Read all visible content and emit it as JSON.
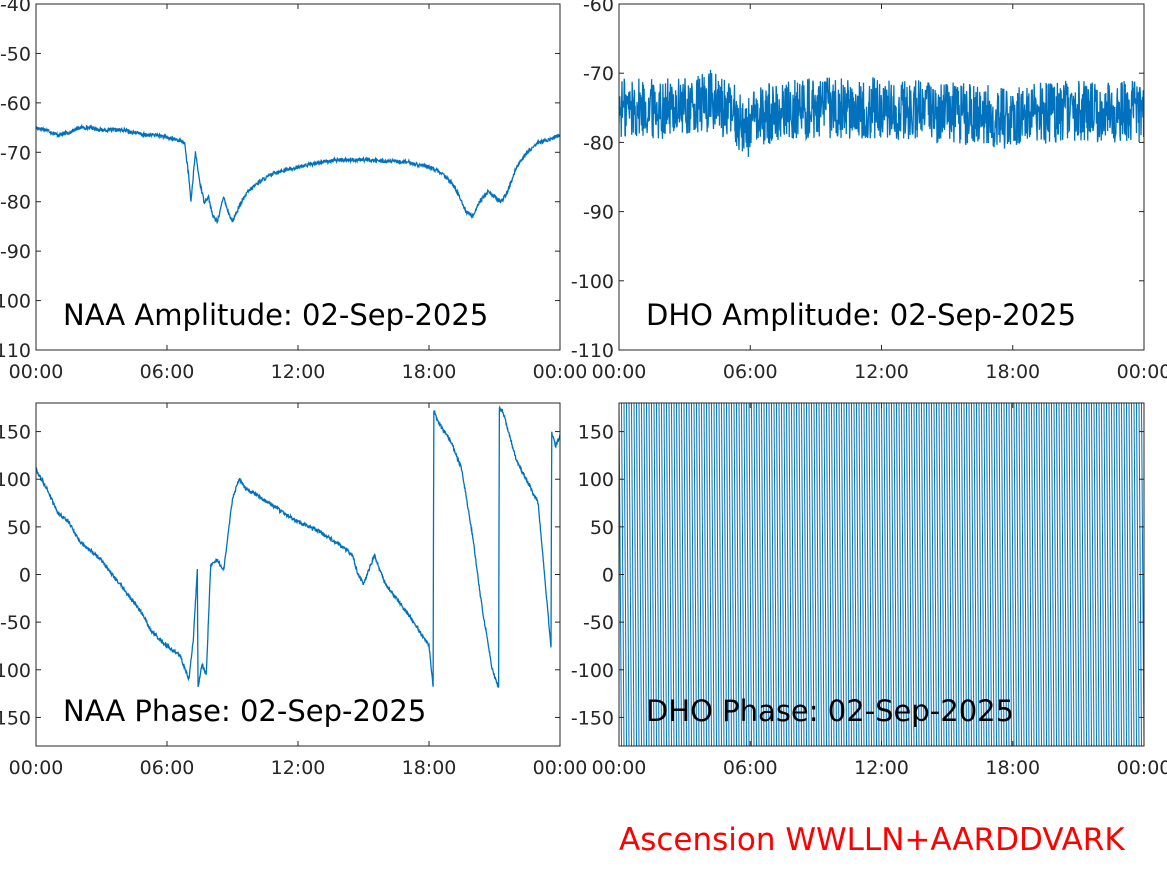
{
  "footer": "Ascension WWLLN+AARDDVARK",
  "line_color": "#0072BD",
  "chart_data": [
    {
      "id": "naa-amplitude",
      "type": "line",
      "title": "NAA Amplitude: 02-Sep-2025",
      "ylim": [
        -110,
        -40
      ],
      "yticks": [
        -40,
        -50,
        -60,
        -70,
        -80,
        -90,
        -100,
        -110
      ],
      "ytick_labels": [
        "-40",
        "-50",
        "-60",
        "-70",
        "-80",
        "-90",
        "-100",
        "-110"
      ],
      "xlim": [
        0,
        24
      ],
      "xtick_labels": [
        "00:00",
        "06:00",
        "12:00",
        "18:00",
        "00:00"
      ],
      "series": [
        {
          "x": [
            0,
            0.5,
            1,
            1.5,
            2,
            2.5,
            3,
            3.5,
            4,
            4.5,
            5,
            5.5,
            6,
            6.5,
            6.8,
            7.0,
            7.1,
            7.3,
            7.5,
            7.7,
            7.9,
            8.1,
            8.3,
            8.6,
            8.8,
            9.0,
            9.3,
            9.7,
            10.2,
            11,
            12,
            13,
            14,
            14.5,
            15,
            16,
            17,
            18,
            18.5,
            19,
            19.3,
            19.5,
            19.7,
            20,
            20.3,
            20.7,
            21,
            21.3,
            21.6,
            22,
            22.5,
            23,
            23.5,
            24
          ],
          "y": [
            -65,
            -65.5,
            -66.5,
            -66,
            -65,
            -65,
            -65.5,
            -65.5,
            -65.5,
            -66,
            -66.5,
            -66.5,
            -67,
            -67.5,
            -68,
            -75,
            -80,
            -70,
            -76,
            -80,
            -79,
            -83,
            -84,
            -79,
            -82,
            -84,
            -81,
            -78,
            -76,
            -74,
            -73,
            -72,
            -71.5,
            -71.5,
            -71.5,
            -71.8,
            -72,
            -73,
            -74,
            -76,
            -78,
            -80,
            -82,
            -83,
            -80,
            -78,
            -79,
            -80,
            -78,
            -73,
            -70,
            -68,
            -67.5,
            -66.5
          ],
          "noise": 0.4
        }
      ]
    },
    {
      "id": "dho-amplitude",
      "type": "line",
      "title": "DHO Amplitude: 02-Sep-2025",
      "ylim": [
        -110,
        -60
      ],
      "yticks": [
        -60,
        -70,
        -80,
        -90,
        -100,
        -110
      ],
      "ytick_labels": [
        "-60",
        "-70",
        "-80",
        "-90",
        "-100",
        "-110"
      ],
      "xlim": [
        0,
        24
      ],
      "xtick_labels": [
        "00:00",
        "06:00",
        "12:00",
        "18:00",
        "00:00"
      ],
      "series": [
        {
          "x": [
            0,
            2,
            3.5,
            4.2,
            4.8,
            5.3,
            5.8,
            6.5,
            8,
            10,
            12,
            14,
            16,
            18,
            19,
            20,
            22,
            24
          ],
          "y": [
            -75,
            -75,
            -75,
            -74,
            -75,
            -76,
            -78,
            -76,
            -75,
            -75,
            -75,
            -75.5,
            -76,
            -76.5,
            -76,
            -75.5,
            -75.5,
            -75.5
          ],
          "noise": 4.5
        }
      ]
    },
    {
      "id": "naa-phase",
      "type": "line",
      "title": "NAA Phase: 02-Sep-2025",
      "ylim": [
        -180,
        180
      ],
      "yticks": [
        150,
        100,
        50,
        0,
        -50,
        -100,
        -150
      ],
      "ytick_labels": [
        "150",
        "100",
        "50",
        "0",
        "-50",
        "-100",
        "-150"
      ],
      "xlim": [
        0,
        24
      ],
      "xtick_labels": [
        "00:00",
        "06:00",
        "12:00",
        "18:00",
        "00:00"
      ],
      "series": [
        {
          "x": [
            0,
            0.5,
            1,
            1.5,
            2,
            3,
            4,
            4.5,
            4.9,
            5.3,
            6,
            6.6,
            7,
            7.2,
            7.4,
            7.41,
            7.6,
            7.8,
            8.0,
            8.3,
            8.6,
            9.0,
            9.3,
            9.6,
            10,
            11,
            12,
            13,
            14,
            14.5,
            14.75,
            15,
            15.5,
            16,
            17,
            18,
            18.2,
            18.21,
            18.4,
            19,
            19.5,
            20,
            20.4,
            20.9,
            21.2,
            21.21,
            21.4,
            22,
            23,
            23.6,
            23.61,
            23.8,
            24
          ],
          "y": [
            110,
            90,
            65,
            55,
            35,
            15,
            -15,
            -30,
            -42,
            -60,
            -75,
            -85,
            -110,
            -70,
            10,
            -120,
            -95,
            -105,
            10,
            15,
            5,
            80,
            100,
            90,
            85,
            70,
            55,
            45,
            30,
            20,
            0,
            -10,
            20,
            -10,
            -40,
            -75,
            -120,
            175,
            160,
            140,
            110,
            40,
            -30,
            -100,
            -120,
            175,
            170,
            120,
            75,
            -80,
            150,
            135,
            145
          ],
          "noise": 2.0
        }
      ]
    },
    {
      "id": "dho-phase",
      "type": "line",
      "title": "DHO Phase: 02-Sep-2025",
      "ylim": [
        -180,
        180
      ],
      "yticks": [
        150,
        100,
        50,
        0,
        -50,
        -100,
        -150
      ],
      "ytick_labels": [
        "150",
        "100",
        "50",
        "0",
        "-50",
        "-100",
        "-150"
      ],
      "xlim": [
        0,
        24
      ],
      "xtick_labels": [
        "00:00",
        "06:00",
        "12:00",
        "18:00",
        "00:00"
      ],
      "series": [
        {
          "x": [
            0,
            24
          ],
          "y": [
            -180,
            180
          ],
          "wrap_cycles": 210
        }
      ]
    }
  ]
}
